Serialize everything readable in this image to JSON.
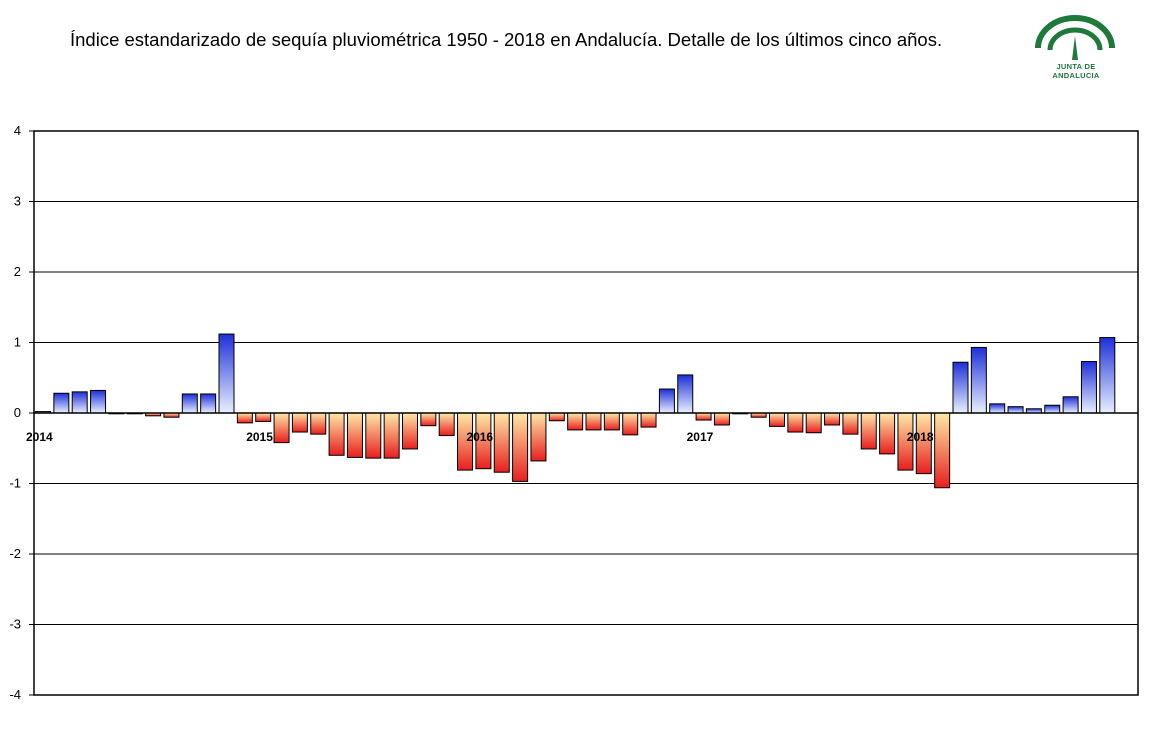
{
  "title": "Índice estandarizado de sequía pluviométrica 1950 - 2018 en Andalucía. Detalle de los últimos cinco años.",
  "logo": {
    "text": "JUNTA DE ANDALUCIA",
    "color": "#1d7a3a"
  },
  "chart_data": {
    "type": "bar",
    "title": "Índice estandarizado de sequía pluviométrica 1950 - 2018 en Andalucía. Detalle de los últimos cinco años.",
    "xlabel": "",
    "ylabel": "",
    "ylim": [
      -4,
      4
    ],
    "yticks": [
      4,
      3,
      2,
      1,
      0,
      -1,
      -2,
      -3,
      -4
    ],
    "grid": true,
    "legend": "none",
    "colors": {
      "positive_top": "#1e2fd8",
      "positive_bottom": "#e8f0ff",
      "negative_top": "#ffe9a6",
      "negative_bottom": "#e81e1e"
    },
    "year_labels": [
      {
        "label": "2014",
        "index": 0
      },
      {
        "label": "2015",
        "index": 12
      },
      {
        "label": "2016",
        "index": 24
      },
      {
        "label": "2017",
        "index": 36
      },
      {
        "label": "2018",
        "index": 48
      }
    ],
    "values": [
      0.02,
      0.28,
      0.3,
      0.32,
      -0.01,
      -0.01,
      -0.04,
      -0.06,
      0.27,
      0.27,
      1.12,
      -0.14,
      -0.12,
      -0.42,
      -0.27,
      -0.3,
      -0.6,
      -0.63,
      -0.64,
      -0.64,
      -0.51,
      -0.18,
      -0.32,
      -0.81,
      -0.79,
      -0.84,
      -0.97,
      -0.68,
      -0.11,
      -0.24,
      -0.24,
      -0.24,
      -0.31,
      -0.2,
      0.34,
      0.54,
      -0.1,
      -0.17,
      -0.01,
      -0.06,
      -0.19,
      -0.27,
      -0.28,
      -0.17,
      -0.3,
      -0.51,
      -0.58,
      -0.81,
      -0.86,
      -1.06,
      0.72,
      0.93,
      0.13,
      0.09,
      0.06,
      0.11,
      0.23,
      0.73,
      1.07
    ]
  }
}
